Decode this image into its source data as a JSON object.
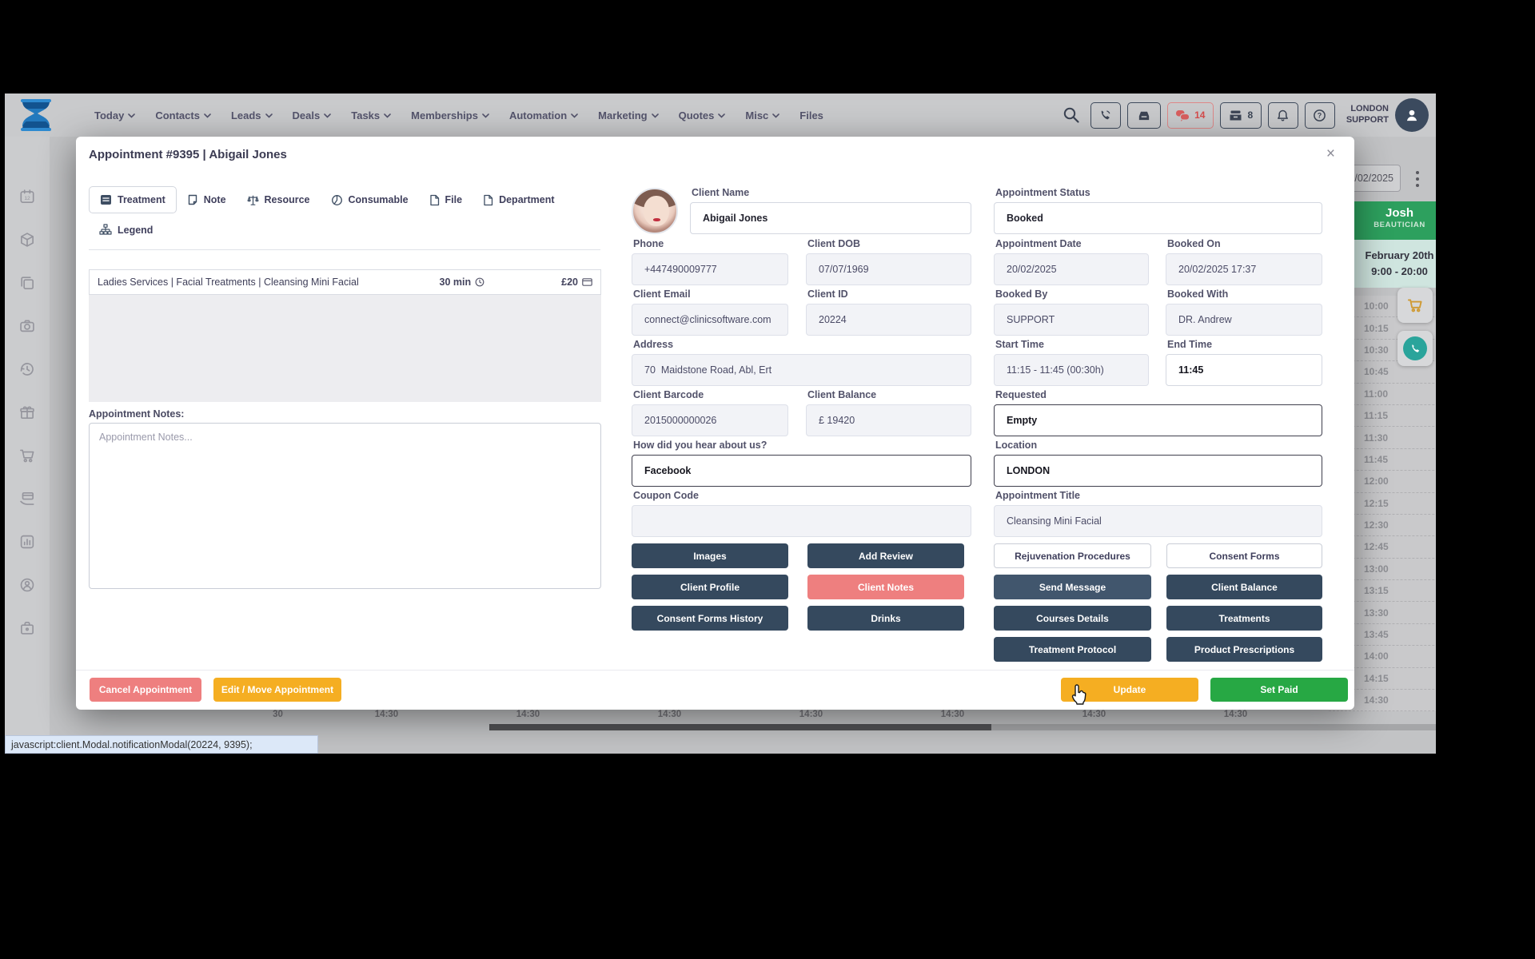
{
  "nav": {
    "menu": [
      {
        "label": "Today",
        "caret": true
      },
      {
        "label": "Contacts",
        "caret": true
      },
      {
        "label": "Leads",
        "caret": true
      },
      {
        "label": "Deals",
        "caret": true
      },
      {
        "label": "Tasks",
        "caret": true
      },
      {
        "label": "Memberships",
        "caret": true
      },
      {
        "label": "Automation",
        "caret": true
      },
      {
        "label": "Marketing",
        "caret": true
      },
      {
        "label": "Quotes",
        "caret": true
      },
      {
        "label": "Misc",
        "caret": true
      },
      {
        "label": "Files",
        "caret": false
      }
    ],
    "chat_count": "14",
    "till_count": "8",
    "user_line1": "LONDON",
    "user_line2": "SUPPORT"
  },
  "modal": {
    "title": "Appointment #9395 | Abigail Jones",
    "close": "×",
    "tabs": {
      "treatment": "Treatment",
      "note": "Note",
      "resource": "Resource",
      "consumable": "Consumable",
      "file": "File",
      "department": "Department",
      "legend": "Legend"
    },
    "treatment_row": {
      "name": "Ladies Services | Facial Treatments | Cleansing Mini Facial",
      "duration": "30 min",
      "price": "£20"
    },
    "notes": {
      "label": "Appointment Notes:",
      "placeholder": "Appointment Notes..."
    },
    "client": {
      "name": {
        "label": "Client Name",
        "value": "Abigail Jones"
      },
      "phone": {
        "label": "Phone",
        "value": "+447490009777"
      },
      "dob": {
        "label": "Client DOB",
        "value": "07/07/1969"
      },
      "email": {
        "label": "Client Email",
        "value": "connect@clinicsoftware.com"
      },
      "id": {
        "label": "Client ID",
        "value": "20224"
      },
      "address": {
        "label": "Address",
        "value": "70  Maidstone Road, Abl, Ert"
      },
      "barcode": {
        "label": "Client Barcode",
        "value": "2015000000026"
      },
      "balance": {
        "label": "Client Balance",
        "value": "£ 19420"
      },
      "referral": {
        "label": "How did you hear about us?",
        "value": "Facebook"
      },
      "coupon": {
        "label": "Coupon Code",
        "value": ""
      }
    },
    "appointment": {
      "status": {
        "label": "Appointment Status",
        "value": "Booked"
      },
      "date": {
        "label": "Appointment Date",
        "value": "20/02/2025"
      },
      "booked_on": {
        "label": "Booked On",
        "value": "20/02/2025 17:37"
      },
      "booked_by": {
        "label": "Booked By",
        "value": "SUPPORT"
      },
      "booked_with": {
        "label": "Booked With",
        "value": "DR. Andrew"
      },
      "start_time": {
        "label": "Start Time",
        "value": "11:15 - 11:45 (00:30h)"
      },
      "end_time": {
        "label": "End Time",
        "value": "11:45"
      },
      "requested": {
        "label": "Requested",
        "value": "Empty"
      },
      "location": {
        "label": "Location",
        "value": "LONDON"
      },
      "title_field": {
        "label": "Appointment Title",
        "value": "Cleansing Mini Facial"
      }
    },
    "left_buttons": [
      {
        "label": "Images",
        "style": "dark"
      },
      {
        "label": "Add Review",
        "style": "dark"
      },
      {
        "label": "Client Profile",
        "style": "dark"
      },
      {
        "label": "Client Notes",
        "style": "salmon"
      },
      {
        "label": "Consent Forms History",
        "style": "dark"
      },
      {
        "label": "Drinks",
        "style": "dark"
      }
    ],
    "right_buttons": [
      {
        "label": "Rejuvenation Procedures",
        "style": "outline"
      },
      {
        "label": "Consent Forms",
        "style": "outline"
      },
      {
        "label": "Send Message",
        "style": "hover dark"
      },
      {
        "label": "Client Balance",
        "style": "dark"
      },
      {
        "label": "Courses Details",
        "style": "dark"
      },
      {
        "label": "Treatments",
        "style": "dark"
      },
      {
        "label": "Treatment Protocol",
        "style": "dark"
      },
      {
        "label": "Product Prescriptions",
        "style": "dark"
      }
    ],
    "footer": {
      "cancel": "Cancel Appointment",
      "edit": "Edit / Move Appointment",
      "update": "Update",
      "set_paid": "Set Paid"
    }
  },
  "calendar": {
    "date": "20/02/2025",
    "staff": "Josh",
    "role": "BEAUTICIAN",
    "day": "February 20th",
    "hours": "9:00 - 20:00",
    "times": [
      "10:00",
      "10:15",
      "10:30",
      "10:45",
      "11:00",
      "11:15",
      "11:30",
      "11:45",
      "12:00",
      "12:15",
      "12:30",
      "12:45",
      "13:00",
      "13:15",
      "13:30",
      "13:45",
      "14:00",
      "14:15",
      "14:30"
    ],
    "bottom_row": [
      "30",
      "14:30",
      "14:30",
      "14:30",
      "14:30",
      "14:30",
      "14:30",
      "14:30"
    ]
  },
  "statusbar": {
    "text": "javascript:client.Modal.notificationModal(20224, 9395);"
  },
  "colors": {
    "dark_button": "#35495e",
    "salmon": "#ee7f7f",
    "amber": "#f5ae22",
    "green": "#27a844",
    "calendar_green": "#2da05e",
    "logo_blue": "#2379bd"
  }
}
